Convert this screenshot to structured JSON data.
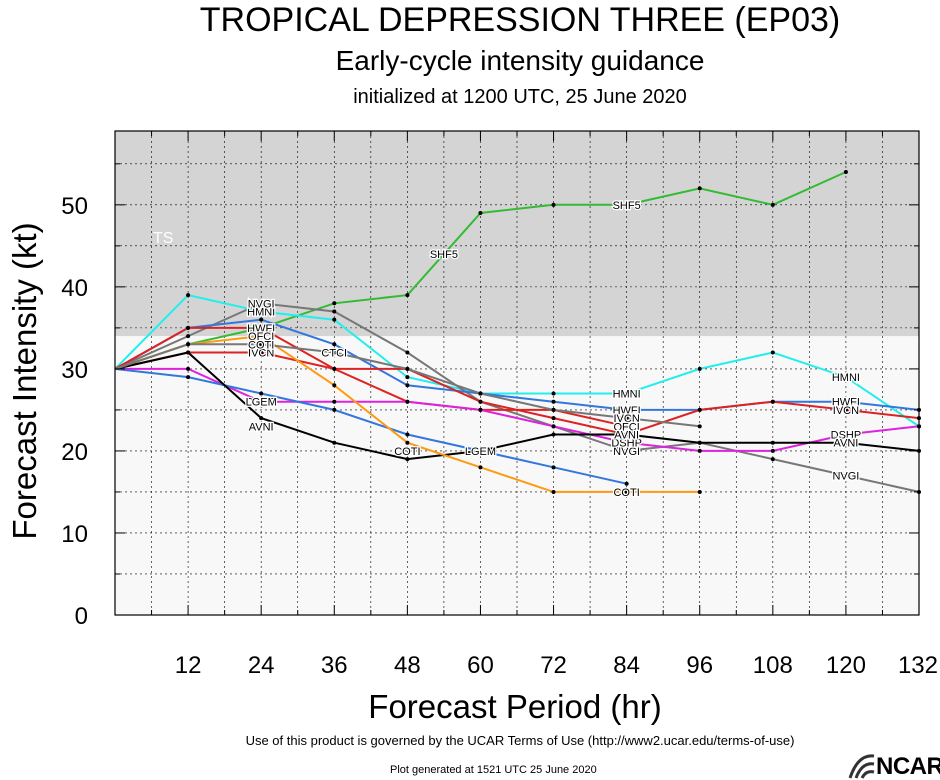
{
  "header": {
    "title": "TROPICAL DEPRESSION THREE (EP03)",
    "subtitle": "Early-cycle intensity guidance",
    "init_line": "initialized at 1200 UTC, 25 June 2020"
  },
  "footer": {
    "terms": "Use of this product is governed by the UCAR Terms of Use (http://www2.ucar.edu/terms-of-use)",
    "generated": "Plot generated at 1521 UTC   25 June 2020",
    "logo_text": "NCAR"
  },
  "chart_data": {
    "type": "line",
    "xlabel": "Forecast Period (hr)",
    "ylabel": "Forecast Intensity (kt)",
    "xlim": [
      0,
      132
    ],
    "ylim": [
      0,
      59
    ],
    "xticks": [
      12,
      24,
      36,
      48,
      60,
      72,
      84,
      96,
      108,
      120,
      132
    ],
    "yticks": [
      0,
      10,
      20,
      30,
      40,
      50
    ],
    "bands": [
      {
        "label": "TS",
        "ymin": 34,
        "ymax": 59,
        "color": "#d4d4d4"
      }
    ],
    "series": [
      {
        "name": "SHF5",
        "color": "#33bb33",
        "label_at": [
          [
            54,
            44
          ],
          [
            84,
            50
          ]
        ],
        "points": [
          [
            0,
            30
          ],
          [
            12,
            33
          ],
          [
            24,
            35
          ],
          [
            36,
            38
          ],
          [
            48,
            39
          ],
          [
            60,
            49
          ],
          [
            72,
            50
          ],
          [
            84,
            50
          ],
          [
            96,
            52
          ],
          [
            108,
            50
          ],
          [
            120,
            54
          ]
        ]
      },
      {
        "name": "HMNI",
        "color": "#22eeee",
        "label_at": [
          [
            24,
            37
          ],
          [
            84,
            27
          ],
          [
            120,
            29
          ]
        ],
        "points": [
          [
            0,
            30
          ],
          [
            12,
            39
          ],
          [
            24,
            37
          ],
          [
            36,
            36
          ],
          [
            48,
            29
          ],
          [
            60,
            27
          ],
          [
            72,
            27
          ],
          [
            84,
            27
          ],
          [
            96,
            30
          ],
          [
            108,
            32
          ],
          [
            120,
            29
          ],
          [
            132,
            23
          ]
        ]
      },
      {
        "name": "NVGI",
        "color": "#777777",
        "label_at": [
          [
            24,
            38
          ],
          [
            84,
            20
          ],
          [
            120,
            17
          ]
        ],
        "points": [
          [
            0,
            30
          ],
          [
            12,
            34
          ],
          [
            24,
            38
          ],
          [
            36,
            37
          ],
          [
            48,
            32
          ],
          [
            60,
            26
          ],
          [
            72,
            23
          ],
          [
            84,
            20
          ],
          [
            96,
            21
          ],
          [
            108,
            19
          ],
          [
            120,
            17
          ],
          [
            132,
            15
          ]
        ]
      },
      {
        "name": "HWFI",
        "color": "#3377dd",
        "label_at": [
          [
            24,
            35
          ],
          [
            84,
            25
          ],
          [
            120,
            26
          ]
        ],
        "points": [
          [
            0,
            30
          ],
          [
            12,
            35
          ],
          [
            24,
            36
          ],
          [
            36,
            33
          ],
          [
            48,
            28
          ],
          [
            60,
            27
          ],
          [
            72,
            26
          ],
          [
            84,
            25
          ],
          [
            96,
            25
          ],
          [
            108,
            26
          ],
          [
            120,
            26
          ],
          [
            132,
            25
          ]
        ]
      },
      {
        "name": "IVCN",
        "color": "#dd2222",
        "label_at": [
          [
            24,
            32
          ],
          [
            84,
            24
          ],
          [
            120,
            25
          ]
        ],
        "points": [
          [
            0,
            30
          ],
          [
            12,
            32
          ],
          [
            24,
            32
          ],
          [
            36,
            30
          ],
          [
            48,
            30
          ],
          [
            60,
            26
          ],
          [
            72,
            24
          ],
          [
            84,
            22
          ],
          [
            96,
            25
          ],
          [
            108,
            26
          ],
          [
            120,
            25
          ],
          [
            132,
            24
          ]
        ]
      },
      {
        "name": "OFCI",
        "color": "#dd2222",
        "label_at": [
          [
            24,
            34
          ],
          [
            84,
            23
          ]
        ],
        "points": [
          [
            0,
            30
          ],
          [
            12,
            35
          ],
          [
            24,
            35
          ],
          [
            36,
            30
          ],
          [
            48,
            26
          ],
          [
            60,
            25
          ],
          [
            72,
            25
          ],
          [
            84,
            23
          ]
        ]
      },
      {
        "name": "DSHP",
        "color": "#dd22dd",
        "label_at": [
          [
            24,
            26
          ],
          [
            84,
            21
          ],
          [
            120,
            22
          ]
        ],
        "points": [
          [
            0,
            30
          ],
          [
            12,
            30
          ],
          [
            24,
            26
          ],
          [
            36,
            26
          ],
          [
            48,
            26
          ],
          [
            60,
            25
          ],
          [
            72,
            23
          ],
          [
            84,
            21
          ],
          [
            96,
            20
          ],
          [
            108,
            20
          ],
          [
            120,
            22
          ],
          [
            132,
            23
          ]
        ]
      },
      {
        "name": "LGEM",
        "color": "#3377dd",
        "label_at": [
          [
            24,
            26
          ],
          [
            60,
            20
          ]
        ],
        "points": [
          [
            0,
            30
          ],
          [
            12,
            29
          ],
          [
            24,
            27
          ],
          [
            36,
            25
          ],
          [
            48,
            22
          ],
          [
            60,
            20
          ],
          [
            72,
            18
          ],
          [
            84,
            16
          ]
        ]
      },
      {
        "name": "AVNI",
        "color": "#000000",
        "label_at": [
          [
            24,
            23
          ],
          [
            84,
            22
          ],
          [
            120,
            21
          ]
        ],
        "points": [
          [
            0,
            30
          ],
          [
            12,
            32
          ],
          [
            24,
            24
          ],
          [
            36,
            21
          ],
          [
            48,
            19
          ],
          [
            60,
            20
          ],
          [
            72,
            22
          ],
          [
            84,
            22
          ],
          [
            96,
            21
          ],
          [
            108,
            21
          ],
          [
            120,
            21
          ],
          [
            132,
            20
          ]
        ]
      },
      {
        "name": "COTI",
        "color": "#ff9911",
        "label_at": [
          [
            24,
            33
          ],
          [
            48,
            20
          ],
          [
            84,
            15
          ]
        ],
        "points": [
          [
            0,
            30
          ],
          [
            12,
            33
          ],
          [
            24,
            34
          ],
          [
            36,
            28
          ],
          [
            48,
            21
          ],
          [
            60,
            18
          ],
          [
            72,
            15
          ],
          [
            84,
            15
          ],
          [
            96,
            15
          ]
        ]
      },
      {
        "name": "CTCI",
        "color": "#777777",
        "label_at": [
          [
            36,
            32
          ]
        ],
        "points": [
          [
            0,
            30
          ],
          [
            12,
            33
          ],
          [
            24,
            33
          ],
          [
            36,
            32
          ],
          [
            48,
            30
          ],
          [
            60,
            27
          ],
          [
            72,
            25
          ],
          [
            84,
            24
          ],
          [
            96,
            23
          ]
        ]
      }
    ]
  }
}
